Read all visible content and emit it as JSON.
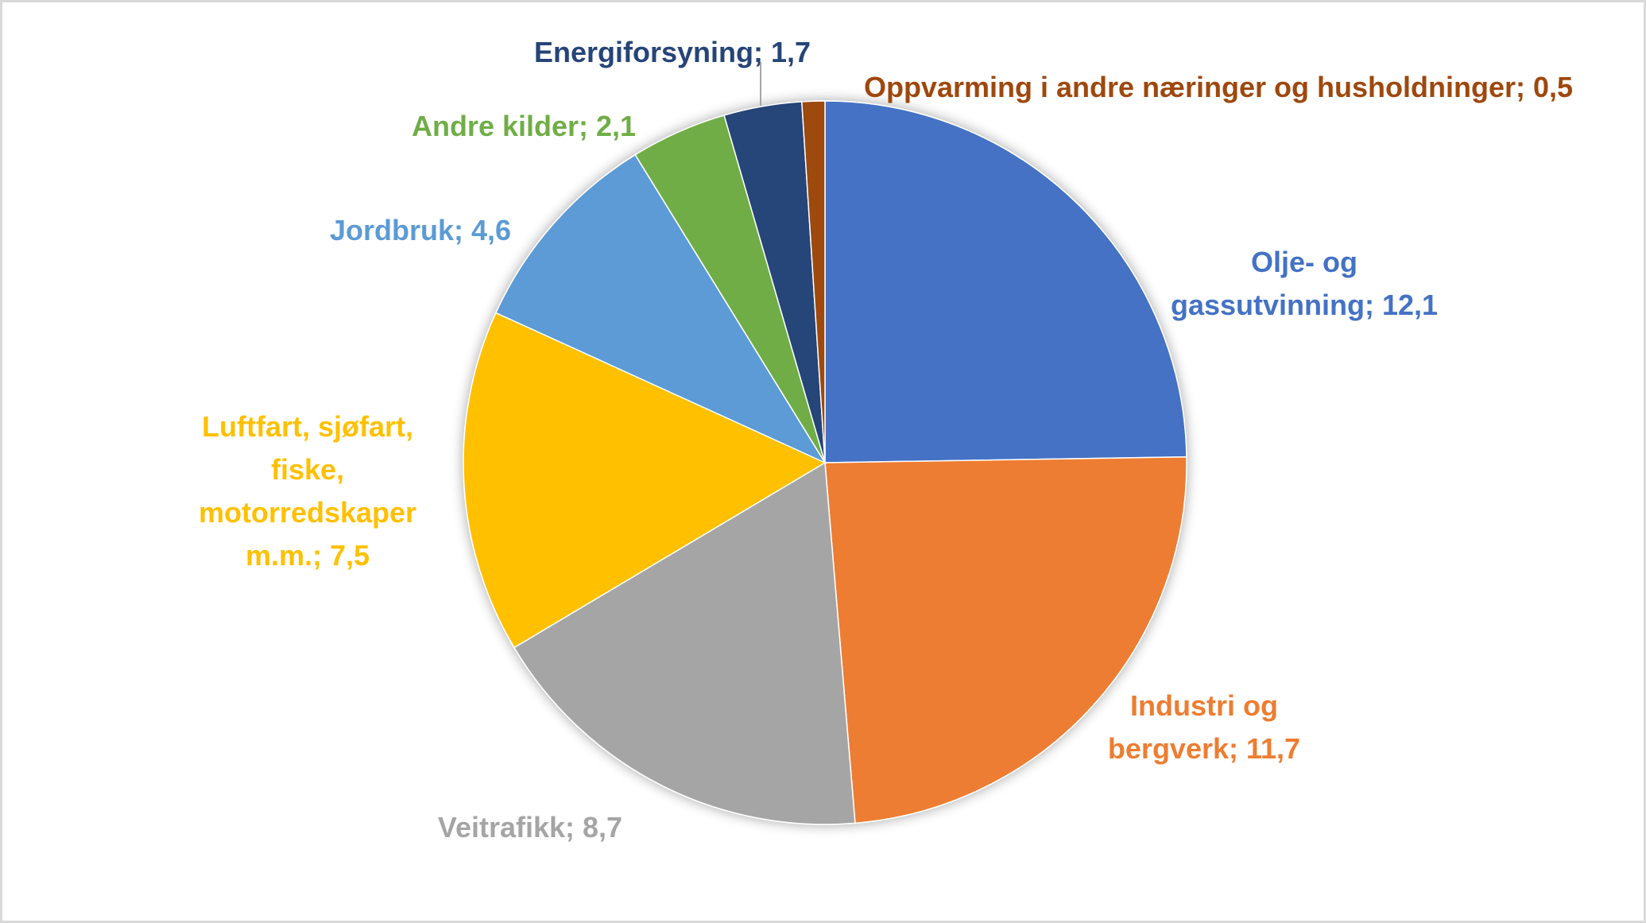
{
  "chart_data": {
    "type": "pie",
    "title": "",
    "start_angle": "12 o'clock, clockwise",
    "slices": [
      {
        "name": "Olje- og gassutvinning",
        "value": 12.1,
        "value_label": "12,1",
        "label_lines": [
          "Olje- og",
          "gassutvinning; 12,1"
        ],
        "color": "#4472C4"
      },
      {
        "name": "Industri og bergverk",
        "value": 11.7,
        "value_label": "11,7",
        "label_lines": [
          "Industri og",
          "bergverk; 11,7"
        ],
        "color": "#ED7D31"
      },
      {
        "name": "Veitrafikk",
        "value": 8.7,
        "value_label": "8,7",
        "label_lines": [
          "Veitrafikk; 8,7"
        ],
        "color": "#A5A5A5"
      },
      {
        "name": "Luftfart, sjøfart, fiske, motorredskaper m.m.",
        "value": 7.5,
        "value_label": "7,5",
        "label_lines": [
          "Luftfart, sjøfart,",
          "fiske,",
          "motorredskaper",
          "m.m.; 7,5"
        ],
        "color": "#FFC000"
      },
      {
        "name": "Jordbruk",
        "value": 4.6,
        "value_label": "4,6",
        "label_lines": [
          "Jordbruk; 4,6"
        ],
        "color": "#5B9BD5"
      },
      {
        "name": "Andre kilder",
        "value": 2.1,
        "value_label": "2,1",
        "label_lines": [
          "Andre kilder; 2,1"
        ],
        "color": "#70AD47"
      },
      {
        "name": "Energiforsyning",
        "value": 1.7,
        "value_label": "1,7",
        "label_lines": [
          "Energiforsyning; 1,7"
        ],
        "color": "#264478"
      },
      {
        "name": "Oppvarming i andre næringer og husholdninger",
        "value": 0.5,
        "value_label": "0,5",
        "label_lines": [
          "Oppvarming i andre næringer og husholdninger; 0,5"
        ],
        "color": "#9E480E"
      }
    ],
    "legend": "none"
  }
}
